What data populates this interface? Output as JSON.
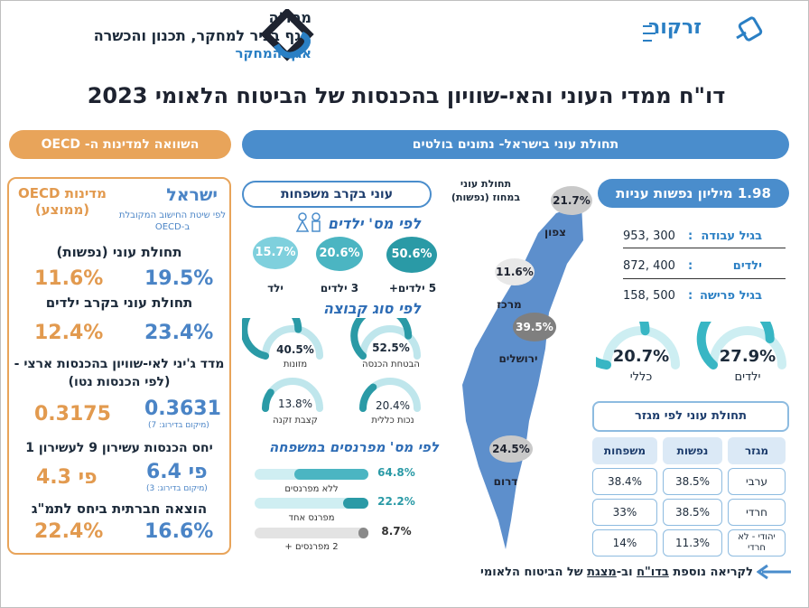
{
  "org": {
    "name": "מתו\"ה",
    "line1": "אגף בכיר למחקר, תכנון והכשרה",
    "line2": "אגף המחקר"
  },
  "brand": {
    "name": "זרקור"
  },
  "title": "דו\"ח ממדי העוני והאי-שוויון בהכנסות של הביטוח הלאומי  2023",
  "headers": {
    "israel_poverty": "תחולת עוני בישראל- נתונים בולטים",
    "oecd_compare": "השוואה למדינות ה- OECD"
  },
  "oecd_panel": {
    "israel_label": "ישראל",
    "israel_note": "לפי שיטת החישוב המקובלת ב-OECD",
    "oecd_label": "מדינות OECD (ממוצע)",
    "rows": [
      {
        "title": "תחולת עוני (נפשות)",
        "israel": "19.5%",
        "oecd": "11.6%",
        "note": ""
      },
      {
        "title": "תחולת עוני בקרב ילדים",
        "israel": "23.4%",
        "oecd": "12.4%",
        "note": ""
      },
      {
        "title": "מדד ג'יני לאי-שוויון בהכנסות ארצי - (לפי הכנסות נטו)",
        "israel": "0.3631",
        "oecd": "0.3175",
        "note": "(מיקום בדירוג: 7)"
      },
      {
        "title": "יחס הכנסות עשירון 9 לעשירון 1",
        "israel": "פי 6.4",
        "oecd": "פי 4.3",
        "note": "(מיקום בדירוג: 3)"
      },
      {
        "title": "הוצאה חברתית ביחס לתמ\"ג",
        "israel": "16.6%",
        "oecd": "22.4%",
        "note": ""
      }
    ]
  },
  "families": {
    "pill": "עוני בקרב משפחות",
    "by_children_title": "לפי מס' ילדים",
    "by_children": [
      {
        "label": "5 ילדים+",
        "value": "50.6%",
        "color": "#2a9aa6"
      },
      {
        "label": "3 ילדים",
        "value": "20.6%",
        "color": "#4bb5c2"
      },
      {
        "label": "ילד",
        "value": "15.7%",
        "color": "#7fd0dd"
      }
    ],
    "by_group_title": "לפי סוג קבוצה",
    "by_group": [
      {
        "label": "הבטחת הכנסה",
        "value": "52.5%",
        "fraction": 0.525
      },
      {
        "label": "מזונות",
        "value": "40.5%",
        "fraction": 0.405
      },
      {
        "label": "נכות כללית",
        "value": "20.4%",
        "fraction": 0.204
      },
      {
        "label": "קצבת זקנה",
        "value": "13.8%",
        "fraction": 0.138
      }
    ],
    "by_earners_title": "לפי מס' מפרנסים במשפחה",
    "by_earners": [
      {
        "label": "ללא מפרנסים",
        "value": "64.8%",
        "fraction": 0.648,
        "color": "#4bb5c2"
      },
      {
        "label": "מפרנס אחד",
        "value": "22.2%",
        "fraction": 0.222,
        "color": "#2a9aa6"
      },
      {
        "label": "2 מפרנסים +",
        "value": "8.7%",
        "fraction": 0.087,
        "color": "#8a8a8a"
      }
    ]
  },
  "map": {
    "title": "תחולת עוני במחוז (נפשות)",
    "regions": [
      {
        "label": "צפון",
        "value": "21.7%"
      },
      {
        "label": "מרכז",
        "value": "11.6%"
      },
      {
        "label": "ירושלים",
        "value": "39.5%"
      },
      {
        "label": "דרום",
        "value": "24.5%"
      }
    ]
  },
  "people": {
    "header": "1.98 מיליון נפשות עניות",
    "rows": [
      {
        "label": "בגיל עבודה",
        "value": "953, 300"
      },
      {
        "label": "ילדים",
        "value": "872, 400"
      },
      {
        "label": "בגיל פרישה",
        "value": "158, 500"
      }
    ],
    "gauges": [
      {
        "label": "ילדים",
        "value": "27.9%",
        "fraction": 0.279
      },
      {
        "label": "כללי",
        "value": "20.7%",
        "fraction": 0.207
      }
    ]
  },
  "sector_table": {
    "title": "תחולת עוני לפי מגזר",
    "columns": [
      "מגזר",
      "נפשות",
      "משפחות"
    ],
    "rows": [
      [
        "ערבי",
        "38.5%",
        "38.4%"
      ],
      [
        "חרדי",
        "38.5%",
        "33%"
      ],
      [
        "יהודי - לא חרדי",
        "11.3%",
        "14%"
      ]
    ]
  },
  "footer": {
    "prefix": "לקריאה נוספת ",
    "link1": "בדו\"ח",
    "mid": " וב-",
    "link2": "מצגת",
    "suffix": " של הביטוח הלאומי"
  },
  "colors": {
    "blue": "#4a8dcc",
    "orange": "#e8a45a",
    "teal": "#2a9aa6"
  }
}
